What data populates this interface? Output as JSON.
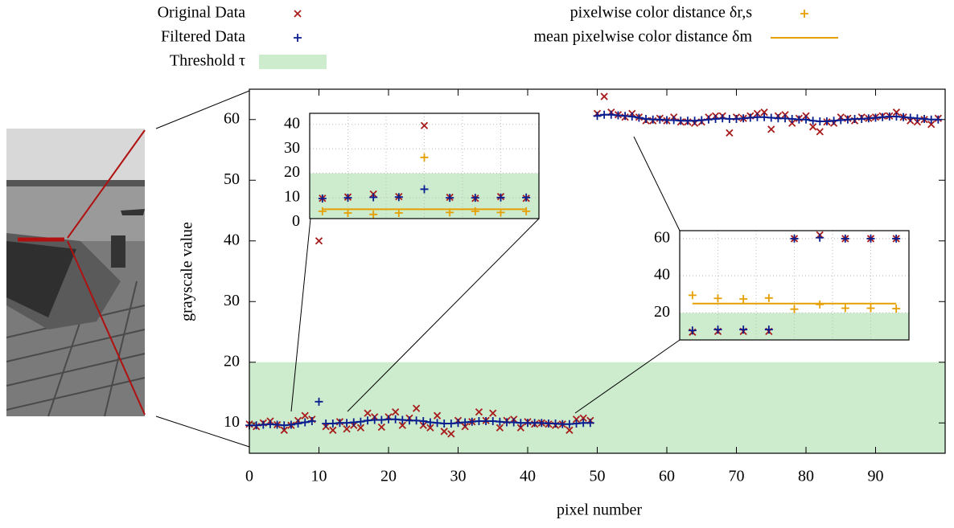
{
  "chart_data": [
    {
      "type": "scatter",
      "xlabel": "pixel number",
      "ylabel": "grayscale value",
      "xlim": [
        0,
        100
      ],
      "ylim": [
        5,
        65
      ],
      "xticks": [
        0,
        10,
        20,
        30,
        40,
        50,
        60,
        70,
        80,
        90
      ],
      "yticks": [
        10,
        20,
        30,
        40,
        50,
        60
      ],
      "threshold": {
        "name": "Threshold τ",
        "value": 20,
        "color": "#cdebcd"
      },
      "x": [
        0,
        1,
        2,
        3,
        4,
        5,
        6,
        7,
        8,
        9,
        10,
        11,
        12,
        13,
        14,
        15,
        16,
        17,
        18,
        19,
        20,
        21,
        22,
        23,
        24,
        25,
        26,
        27,
        28,
        29,
        30,
        31,
        32,
        33,
        34,
        35,
        36,
        37,
        38,
        39,
        40,
        41,
        42,
        43,
        44,
        45,
        46,
        47,
        48,
        49,
        50,
        51,
        52,
        53,
        54,
        55,
        56,
        57,
        58,
        59,
        60,
        61,
        62,
        63,
        64,
        65,
        66,
        67,
        68,
        69,
        70,
        71,
        72,
        73,
        74,
        75,
        76,
        77,
        78,
        79,
        80,
        81,
        82,
        83,
        84,
        85,
        86,
        87,
        88,
        89,
        90,
        91,
        92,
        93,
        94,
        95,
        96,
        97,
        98,
        99
      ],
      "series": [
        {
          "name": "Original Data",
          "color": "#a81c1c",
          "marker": "x",
          "values": [
            9.8,
            9.4,
            10,
            10.3,
            9.7,
            8.8,
            9.6,
            10.4,
            11.2,
            10.6,
            40,
            9.4,
            8.8,
            10.2,
            9,
            9.6,
            9.2,
            11.6,
            11,
            9.3,
            11,
            11.8,
            9.6,
            10.8,
            12.4,
            9.6,
            9.2,
            11.2,
            8.6,
            8.2,
            10.4,
            9.4,
            10.2,
            11.8,
            10.4,
            11.6,
            9.2,
            10.4,
            10.6,
            9.2,
            10.2,
            9.8,
            10,
            9.8,
            9.6,
            9.8,
            8.8,
            10.6,
            10.8,
            10.4,
            61,
            63.8,
            61.2,
            60.8,
            60.4,
            61,
            60.4,
            59.8,
            59.8,
            60.2,
            59.8,
            60.4,
            59.6,
            59.6,
            59.4,
            59.6,
            60.4,
            60.6,
            60.6,
            57.8,
            60.4,
            60.2,
            60.6,
            61,
            61.2,
            58.4,
            60.6,
            60.8,
            59.4,
            60.2,
            60.6,
            58.8,
            58,
            59.6,
            59.4,
            60.4,
            60.2,
            59.8,
            60.4,
            60.2,
            60.4,
            60.6,
            60.6,
            61.2,
            60.4,
            59.8,
            59.6,
            60,
            59.2,
            60.2
          ]
        },
        {
          "name": "Filtered Data",
          "color": "#0a1f8f",
          "marker": "+",
          "line": true,
          "values": [
            9.6,
            9.6,
            9.7,
            9.8,
            9.7,
            9.6,
            9.7,
            9.9,
            10.1,
            10.3,
            13.5,
            9.9,
            9.9,
            10,
            10,
            10.1,
            10.2,
            10.4,
            10.5,
            10.5,
            10.6,
            10.6,
            10.5,
            10.4,
            10.4,
            10.3,
            10.1,
            10,
            9.9,
            9.9,
            10,
            10.1,
            10.2,
            10.3,
            10.3,
            10.3,
            10.2,
            10.1,
            10.1,
            10,
            10,
            10,
            10,
            9.9,
            9.9,
            9.8,
            9.8,
            9.9,
            10,
            10,
            60.6,
            60.8,
            60.8,
            60.7,
            60.6,
            60.5,
            60.3,
            60.1,
            60,
            60,
            59.9,
            59.9,
            59.8,
            59.8,
            59.8,
            59.9,
            60,
            60.1,
            60.2,
            60.1,
            60.1,
            60.2,
            60.3,
            60.4,
            60.4,
            60.3,
            60.2,
            60.2,
            60.1,
            60,
            60,
            59.8,
            59.7,
            59.7,
            59.8,
            59.9,
            60,
            60.1,
            60.1,
            60.2,
            60.3,
            60.4,
            60.5,
            60.5,
            60.4,
            60.3,
            60.2,
            60.1,
            60,
            60
          ]
        }
      ]
    },
    {
      "type": "scatter",
      "xlim": [
        5.5,
        14.5
      ],
      "ylim": [
        1.5,
        44.5
      ],
      "yticks": [
        0,
        10,
        20,
        30,
        40
      ],
      "grid": true,
      "xgrid": [
        7,
        8.5,
        10,
        11.5,
        13
      ],
      "threshold": {
        "value": 20,
        "color": "#cdebcd"
      },
      "x": [
        6,
        7,
        8,
        9,
        10,
        11,
        12,
        13,
        14
      ],
      "series": [
        {
          "color": "#a81c1c",
          "marker": "x",
          "values": [
            9.8,
            10.3,
            11.5,
            10.5,
            39.5,
            10.2,
            9.8,
            10.5,
            9.8
          ]
        },
        {
          "color": "#0a1f8f",
          "marker": "+",
          "values": [
            9.7,
            10,
            10.2,
            10.3,
            13.5,
            10,
            10,
            10.1,
            10.1
          ]
        },
        {
          "name": "pixelwise color distance δr,s",
          "color": "#e69f00",
          "marker": "+",
          "values": [
            4.5,
            3.8,
            3.2,
            3.8,
            26.5,
            4,
            4.5,
            4,
            4.5
          ]
        }
      ],
      "mean": {
        "name": "mean pixelwise color distance δm",
        "value": 5.3,
        "color": "#e69f00"
      }
    },
    {
      "type": "scatter",
      "xlim": [
        45.5,
        54.5
      ],
      "ylim": [
        5.4,
        64.3
      ],
      "yticks": [
        20,
        40,
        60
      ],
      "grid": true,
      "xgrid": [
        47,
        48.5,
        50,
        51.5,
        53
      ],
      "threshold": {
        "value": 20,
        "color": "#cdebcd"
      },
      "x": [
        46,
        47,
        48,
        49,
        50,
        51,
        52,
        53,
        54
      ],
      "series": [
        {
          "color": "#a81c1c",
          "marker": "x",
          "values": [
            9.6,
            10,
            10,
            10,
            60,
            62,
            60,
            60,
            60
          ]
        },
        {
          "color": "#0a1f8f",
          "marker": "+",
          "values": [
            10.5,
            11,
            11,
            11,
            60,
            60.5,
            60,
            60,
            60
          ]
        },
        {
          "color": "#e69f00",
          "marker": "+",
          "values": [
            29.5,
            27.8,
            27.5,
            28,
            22,
            24.5,
            22.5,
            22.5,
            22.3
          ]
        }
      ],
      "mean": {
        "value": 25,
        "color": "#e69f00"
      }
    }
  ]
}
